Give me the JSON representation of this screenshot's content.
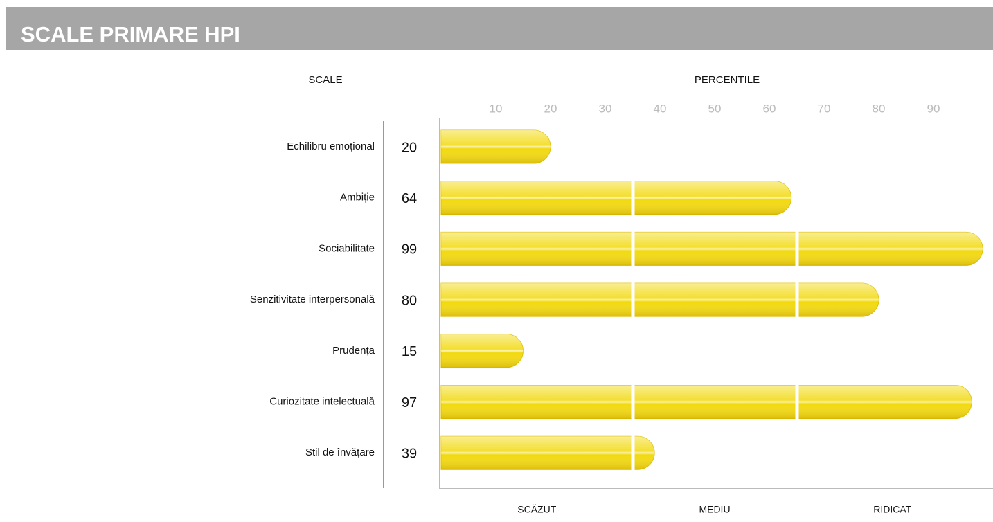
{
  "chart_data": {
    "type": "bar",
    "title": "SCALE PRIMARE HPI",
    "category_header": "SCALE",
    "value_header": "PERCENTILE",
    "categories": [
      "Echilibru emoțional",
      "Ambiție",
      "Sociabilitate",
      "Senzitivitate interpersonală",
      "Prudența",
      "Curiozitate intelectuală",
      "Stil de învățare"
    ],
    "values": [
      20,
      64,
      99,
      80,
      15,
      97,
      39
    ],
    "color": "#f2d90c",
    "xlim": [
      0,
      100
    ],
    "xticks": [
      10,
      20,
      30,
      40,
      50,
      60,
      70,
      80,
      90
    ],
    "bands": [
      {
        "label": "SCĂZUT",
        "range": [
          0,
          35
        ]
      },
      {
        "label": "MEDIU",
        "range": [
          35,
          65
        ]
      },
      {
        "label": "RIDICAT",
        "range": [
          65,
          100
        ]
      }
    ]
  }
}
